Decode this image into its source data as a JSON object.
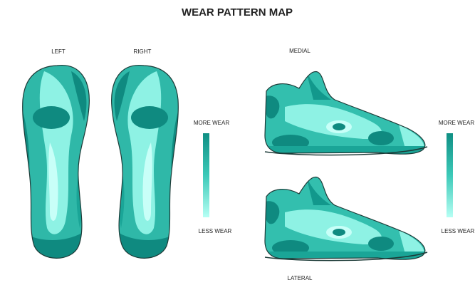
{
  "title": "WEAR PATTERN MAP",
  "insoles": [
    {
      "label": "LEFT"
    },
    {
      "label": "RIGHT"
    }
  ],
  "side_views": [
    {
      "label": "MEDIAL"
    },
    {
      "label": "LATERAL"
    }
  ],
  "legends": [
    {
      "top": "MORE WEAR",
      "bottom": "LESS WEAR"
    },
    {
      "top": "MORE WEAR",
      "bottom": "LESS WEAR"
    }
  ]
}
